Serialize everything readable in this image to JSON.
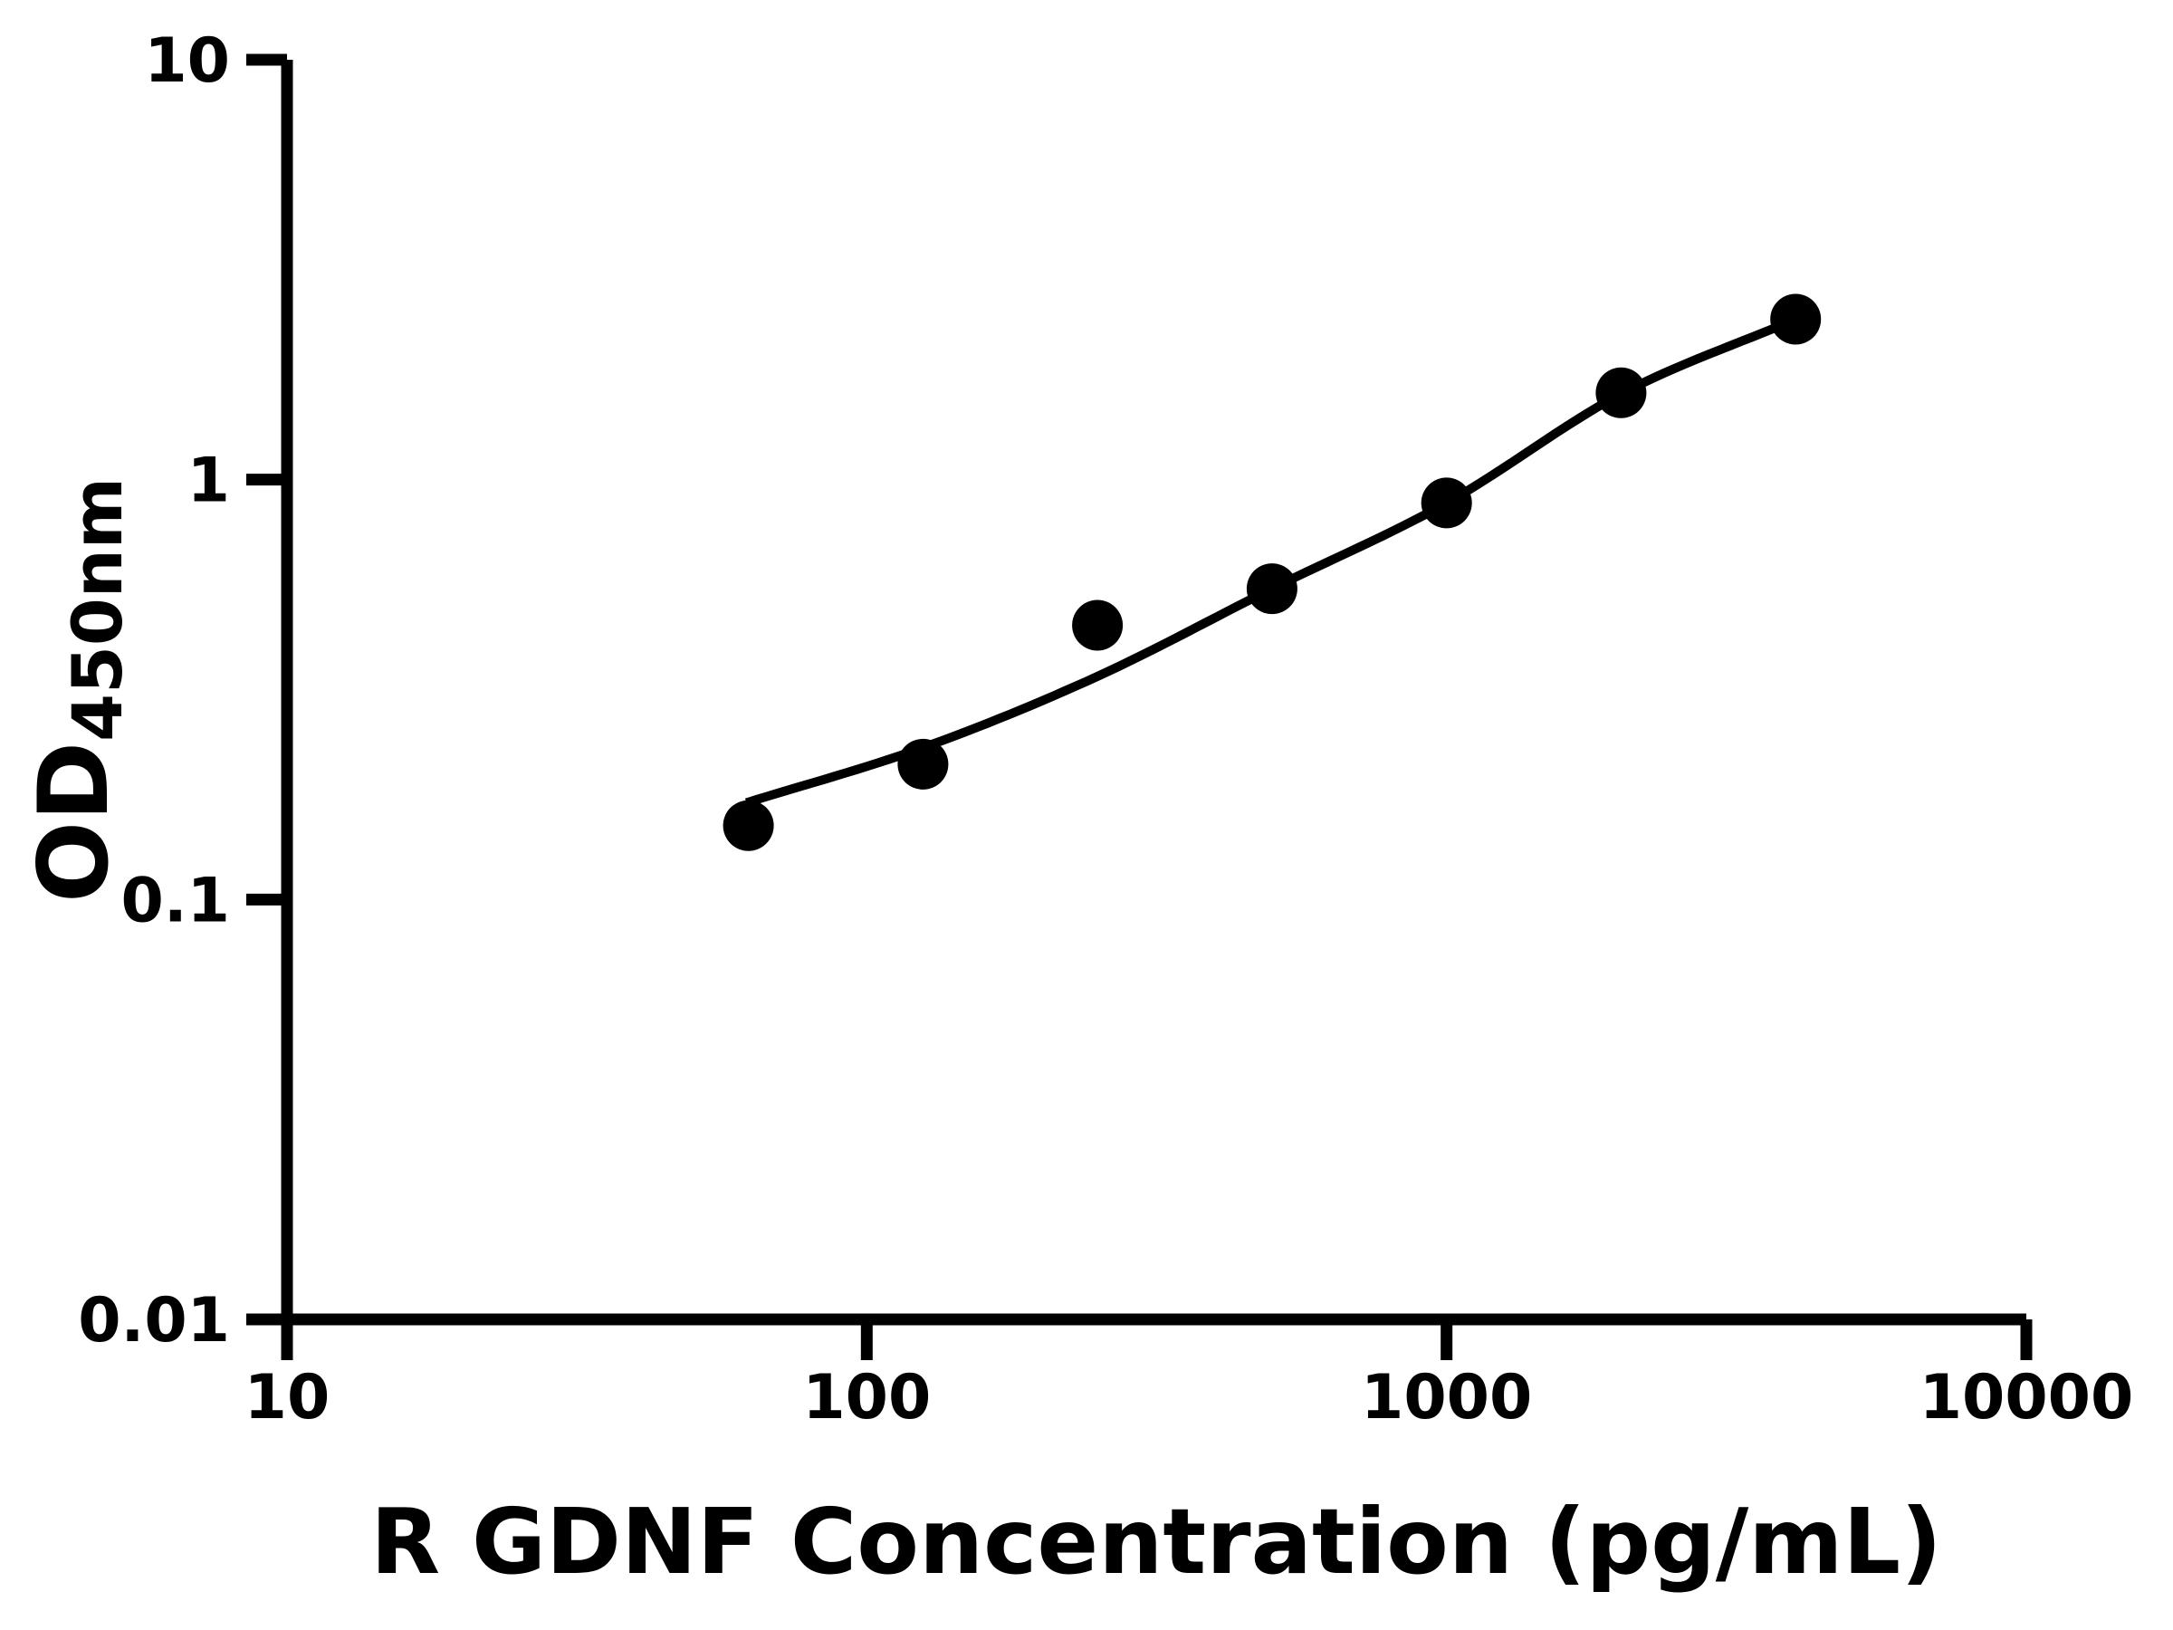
{
  "chart_data": {
    "type": "scatter",
    "title": "",
    "xlabel": "R GDNF Concentration (pg/mL)",
    "ylabel": "OD450nm",
    "ylabel_main": "OD",
    "ylabel_sub": "450nm",
    "x_scale": "log10",
    "y_scale": "log10",
    "xlim": [
      10,
      10000
    ],
    "ylim": [
      0.01,
      10
    ],
    "grid": false,
    "legend": "none",
    "x_ticks": {
      "values": [
        10,
        100,
        1000,
        10000
      ],
      "labels": [
        "10",
        "100",
        "1000",
        "10000"
      ]
    },
    "y_ticks": {
      "values": [
        10,
        1,
        0.1,
        0.01
      ],
      "labels": [
        "10",
        "1",
        "0.1",
        "0.01"
      ]
    },
    "series": [
      {
        "name": "standard-curve-points",
        "marker": "filled-circle",
        "color": "#000000",
        "x": [
          62.5,
          125,
          250,
          500,
          1000,
          2000,
          4000
        ],
        "y": [
          0.15,
          0.21,
          0.45,
          0.55,
          0.88,
          1.61,
          2.41
        ]
      }
    ],
    "fit_curve": {
      "name": "4pl-fit-line",
      "color": "#000000",
      "x": [
        62,
        125,
        250,
        500,
        1000,
        2000,
        4000
      ],
      "y": [
        0.17,
        0.23,
        0.34,
        0.55,
        0.88,
        1.6,
        2.41
      ]
    },
    "colors": {
      "foreground": "#000000",
      "background": "#ffffff"
    }
  }
}
